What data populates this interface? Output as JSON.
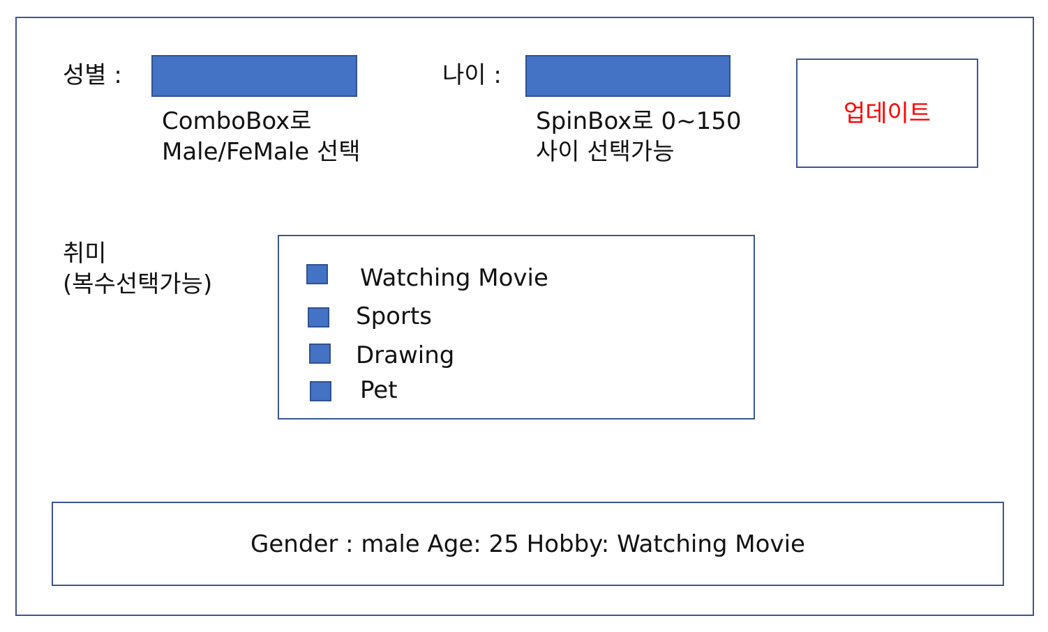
{
  "gender": {
    "label": "성별 :",
    "note_line1": "ComboBox로",
    "note_line2": "Male/FeMale 선택"
  },
  "age": {
    "label": "나이 :",
    "note_line1": "SpinBox로 0~150",
    "note_line2": "사이 선택가능"
  },
  "update_button": {
    "label": "업데이트"
  },
  "hobby": {
    "label_line1": "취미",
    "label_line2": "(복수선택가능)",
    "options": [
      "Watching Movie",
      "Sports",
      "Drawing",
      "Pet"
    ]
  },
  "result": {
    "text": "Gender : male Age: 25 Hobby: Watching Movie"
  },
  "colors": {
    "widget_fill": "#4472c4",
    "border": "#3a5591",
    "button_text": "#ff0000"
  }
}
